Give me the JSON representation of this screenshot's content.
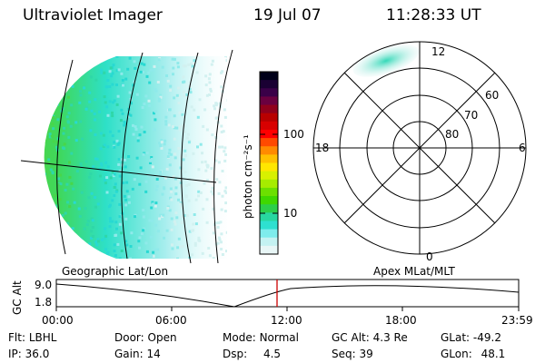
{
  "header": {
    "instrument": "Ultraviolet Imager",
    "date": "19 Jul 07",
    "time": "11:28:33 UT"
  },
  "colorbar": {
    "unit_label": "photon cm⁻²s⁻¹",
    "ticks": [
      "100",
      "10"
    ],
    "colors": [
      "#000018",
      "#1a0033",
      "#3a0048",
      "#6a0040",
      "#90001c",
      "#b80000",
      "#d80000",
      "#ff0000",
      "#ff4a00",
      "#ff8a00",
      "#ffc000",
      "#ffe600",
      "#d8f000",
      "#a6ec00",
      "#6ce000",
      "#3fd800",
      "#2ccf4a",
      "#28d7a0",
      "#2ee0d0",
      "#7eecec",
      "#c4f2f2",
      "#e8f6f6"
    ]
  },
  "left_map": {
    "label": "Geographic Lat/Lon"
  },
  "polar_plot": {
    "label": "Apex MLat/MLT",
    "mlt_labels": [
      "12",
      "18",
      "6",
      "0"
    ],
    "lat_labels": [
      "60",
      "70",
      "80"
    ]
  },
  "timeline": {
    "y_axis_label": "GC Alt",
    "y_ticks": [
      "9.0",
      "1.8"
    ],
    "x_ticks": [
      "00:00",
      "06:00",
      "12:00",
      "18:00",
      "23:59"
    ],
    "marker_color": "#cc0000"
  },
  "status": {
    "flt_label": "Flt:",
    "flt_value": "LBHL",
    "ip_label": "IP:",
    "ip_value": "36.0",
    "door_label": "Door:",
    "door_value": "Open",
    "gain_label": "Gain:",
    "gain_value": "14",
    "mode_label": "Mode:",
    "mode_value": "Normal",
    "dsp_label": "Dsp:",
    "dsp_value": "4.5",
    "gcalt_label": "GC Alt:",
    "gcalt_value": "4.3 Re",
    "seq_label": "Seq:",
    "seq_value": "39",
    "glat_label": "GLat:",
    "glat_value": "-49.2",
    "glon_label": "GLon:",
    "glon_value": "48.1"
  }
}
